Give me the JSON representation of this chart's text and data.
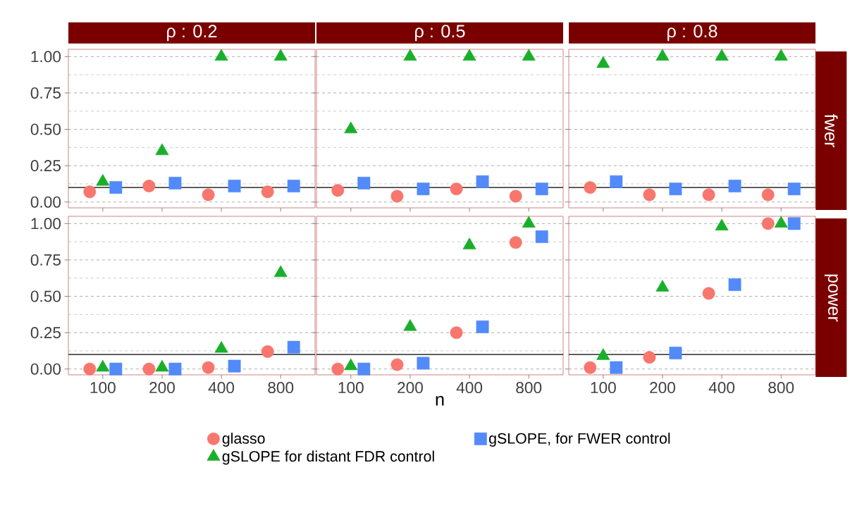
{
  "chart_data": [
    {
      "type": "scatter",
      "title": "ρ : 0.2",
      "categories": [
        "100",
        "200",
        "400",
        "800"
      ],
      "ylim": [
        -0.04,
        1.05
      ],
      "yticks": [
        {
          "value": 0,
          "label": "0.00"
        },
        {
          "value": 0.25,
          "label": "0.25"
        },
        {
          "value": 0.5,
          "label": "0.50"
        },
        {
          "value": 0.75,
          "label": "0.75"
        },
        {
          "value": 1,
          "label": "1.00"
        }
      ],
      "grid": "y",
      "tick_labels": "y",
      "ref_lines": [
        {
          "axis": "y",
          "value": 0.1,
          "color": "#000000"
        }
      ],
      "series": [
        {
          "color": "#f8766d",
          "marker": "circle",
          "values": [
            0.07,
            0.11,
            0.05,
            0.07
          ]
        },
        {
          "color": "#1aaf2b",
          "marker": "triangle",
          "values": [
            0.14,
            0.35,
            1.0,
            1.0
          ]
        },
        {
          "color": "#528afa",
          "marker": "square",
          "values": [
            0.1,
            0.13,
            0.11,
            0.11
          ]
        }
      ]
    },
    {
      "type": "scatter",
      "title": "ρ : 0.5",
      "categories": [
        "100",
        "200",
        "400",
        "800"
      ],
      "ylim": [
        -0.04,
        1.05
      ],
      "yticks": [
        0,
        0.25,
        0.5,
        0.75,
        1
      ],
      "grid": "y",
      "tick_labels": false,
      "ref_lines": [
        {
          "axis": "y",
          "value": 0.1,
          "color": "#000000"
        }
      ],
      "series": [
        {
          "color": "#f8766d",
          "marker": "circle",
          "values": [
            0.08,
            0.04,
            0.09,
            0.04
          ]
        },
        {
          "color": "#1aaf2b",
          "marker": "triangle",
          "values": [
            0.5,
            1.0,
            1.0,
            1.0
          ]
        },
        {
          "color": "#528afa",
          "marker": "square",
          "values": [
            0.13,
            0.09,
            0.14,
            0.09
          ]
        }
      ]
    },
    {
      "type": "scatter",
      "title": "ρ : 0.8",
      "y2label": "fwer",
      "categories": [
        "100",
        "200",
        "400",
        "800"
      ],
      "ylim": [
        -0.04,
        1.05
      ],
      "yticks": [
        0,
        0.25,
        0.5,
        0.75,
        1
      ],
      "grid": "y",
      "tick_labels": false,
      "ref_lines": [
        {
          "axis": "y",
          "value": 0.1,
          "color": "#000000"
        }
      ],
      "series": [
        {
          "color": "#f8766d",
          "marker": "circle",
          "values": [
            0.1,
            0.05,
            0.05,
            0.05
          ]
        },
        {
          "color": "#1aaf2b",
          "marker": "triangle",
          "values": [
            0.95,
            1.0,
            1.0,
            1.0
          ]
        },
        {
          "color": "#528afa",
          "marker": "square",
          "values": [
            0.14,
            0.09,
            0.11,
            0.09
          ]
        }
      ]
    },
    {
      "type": "scatter",
      "categories": [
        "100",
        "200",
        "400",
        "800"
      ],
      "ylim": [
        -0.04,
        1.05
      ],
      "yticks": [
        {
          "value": 0,
          "label": "0.00"
        },
        {
          "value": 0.25,
          "label": "0.25"
        },
        {
          "value": 0.5,
          "label": "0.50"
        },
        {
          "value": 0.75,
          "label": "0.75"
        },
        {
          "value": 1,
          "label": "1.00"
        }
      ],
      "grid": "y",
      "ref_lines": [
        {
          "axis": "y",
          "value": 0.1,
          "color": "#000000"
        }
      ],
      "series": [
        {
          "color": "#f8766d",
          "marker": "circle",
          "values": [
            0.0,
            0.0,
            0.01,
            0.12
          ]
        },
        {
          "color": "#1aaf2b",
          "marker": "triangle",
          "values": [
            0.01,
            0.01,
            0.14,
            0.66
          ]
        },
        {
          "color": "#528afa",
          "marker": "square",
          "values": [
            0.0,
            0.0,
            0.02,
            0.15
          ]
        }
      ]
    },
    {
      "type": "scatter",
      "xlabel": "n",
      "legend": "bottom",
      "categories": [
        "100",
        "200",
        "400",
        "800"
      ],
      "ylim": [
        -0.04,
        1.05
      ],
      "yticks": [
        0,
        0.25,
        0.5,
        0.75,
        1
      ],
      "grid": "y",
      "tick_labels": "x",
      "ref_lines": [
        {
          "axis": "y",
          "value": 0.1,
          "color": "#000000"
        }
      ],
      "series": [
        {
          "name": "glasso",
          "color": "#f8766d",
          "marker": "circle",
          "values": [
            0.0,
            0.03,
            0.25,
            0.87
          ]
        },
        {
          "name": "gSLOPE for distant FDR control",
          "color": "#1aaf2b",
          "marker": "triangle",
          "values": [
            0.02,
            0.29,
            0.85,
            1.0
          ]
        },
        {
          "name": "gSLOPE, for FWER control",
          "color": "#528afa",
          "marker": "square",
          "values": [
            0.0,
            0.04,
            0.29,
            0.91
          ]
        }
      ]
    },
    {
      "type": "scatter",
      "y2label": "power",
      "categories": [
        "100",
        "200",
        "400",
        "800"
      ],
      "ylim": [
        -0.04,
        1.05
      ],
      "yticks": [
        0,
        0.25,
        0.5,
        0.75,
        1
      ],
      "grid": "y",
      "tick_labels": "x",
      "ref_lines": [
        {
          "axis": "y",
          "value": 0.1,
          "color": "#000000"
        }
      ],
      "series": [
        {
          "color": "#f8766d",
          "marker": "circle",
          "values": [
            0.01,
            0.08,
            0.52,
            1.0
          ]
        },
        {
          "color": "#1aaf2b",
          "marker": "triangle",
          "values": [
            0.09,
            0.56,
            0.98,
            1.0
          ]
        },
        {
          "color": "#528afa",
          "marker": "square",
          "values": [
            0.01,
            0.11,
            0.58,
            1.0
          ]
        }
      ]
    }
  ]
}
